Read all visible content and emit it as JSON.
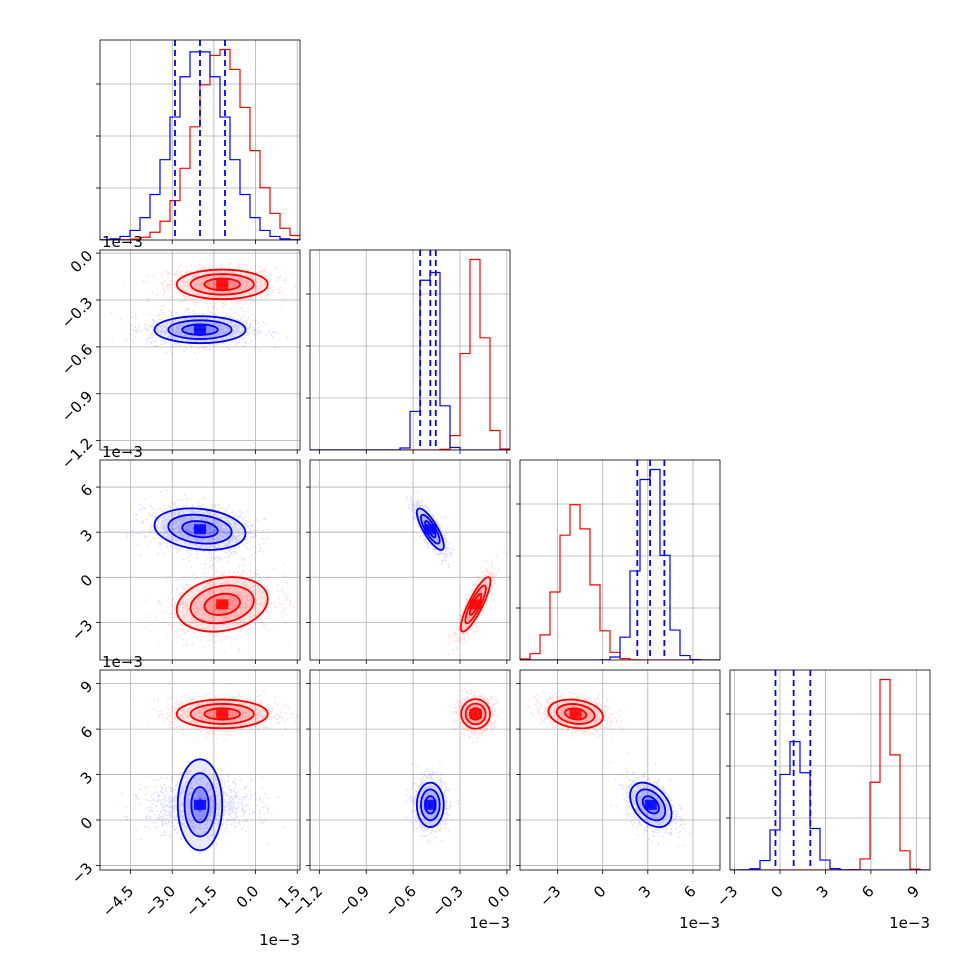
{
  "chart_data": {
    "type": "corner",
    "title": "",
    "grid": true,
    "colors": {
      "red": "#ff0000",
      "blue": "#0000ff",
      "grid": "#b0b0b0"
    },
    "parameters": [
      {
        "range": [
          -5.6,
          1.6
        ],
        "ticks": [
          -4.5,
          -3.0,
          -1.5,
          0.0,
          1.5
        ],
        "tick_labels": [
          "−4.5",
          "−3.0",
          "−1.5",
          "0.0",
          "1.5"
        ],
        "offset_text": "1e−3"
      },
      {
        "range": [
          -1.26,
          0.02
        ],
        "ticks": [
          -1.2,
          -0.9,
          -0.6,
          -0.3,
          0.0
        ],
        "tick_labels": [
          "−1.2",
          "−0.9",
          "−0.6",
          "−0.3",
          "0.0"
        ],
        "offset_text": "1e−3"
      },
      {
        "range": [
          -5.5,
          7.8
        ],
        "ticks": [
          -3,
          0,
          3,
          6
        ],
        "tick_labels": [
          "−3",
          "0",
          "3",
          "6"
        ],
        "offset_text": "1e−3"
      },
      {
        "range": [
          -3.3,
          9.9
        ],
        "ticks": [
          -3,
          0,
          3,
          6,
          9
        ],
        "tick_labels": [
          "−3",
          "0",
          "3",
          "6",
          "9"
        ],
        "offset_text": "1e−3"
      }
    ],
    "series": [
      {
        "color": "#ff0000",
        "means": [
          -1.2,
          -0.2,
          -1.8,
          7.0
        ],
        "stds": [
          0.95,
          0.055,
          1.05,
          0.55
        ],
        "corr": [
          [
            1,
            0,
            0.2,
            0
          ],
          [
            0,
            1,
            0.85,
            0
          ],
          [
            0.2,
            0.85,
            1,
            -0.2
          ],
          [
            0,
            0,
            -0.2,
            1
          ]
        ]
      },
      {
        "color": "#0000ff",
        "means": [
          -2.0,
          -0.49,
          3.2,
          1.0
        ],
        "stds": [
          0.95,
          0.05,
          0.8,
          0.85
        ],
        "corr": [
          [
            1,
            0,
            -0.2,
            0
          ],
          [
            0,
            1,
            -0.8,
            0
          ],
          [
            -0.2,
            -0.8,
            1,
            -0.4
          ],
          [
            0,
            0,
            -0.4,
            1
          ]
        ],
        "quantiles": [
          [
            -2.9,
            -2.0,
            -1.1
          ],
          [
            -0.555,
            -0.49,
            -0.455
          ],
          [
            2.3,
            3.15,
            4.1
          ],
          [
            -0.3,
            0.9,
            2.0
          ]
        ]
      }
    ]
  }
}
